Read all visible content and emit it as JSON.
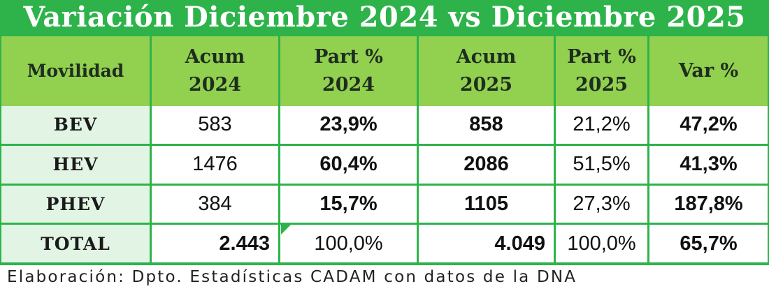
{
  "title": "Variación Diciembre 2024 vs Diciembre 2025",
  "header": {
    "col1": "Movilidad",
    "col2_line1": "Acum",
    "col2_line2": "2024",
    "col3_line1": "Part %",
    "col3_line2": "2024",
    "col4_line1": "Acum",
    "col4_line2": "2025",
    "col5_line1": "Part %",
    "col5_line2": "2025",
    "col6": "Var %"
  },
  "rows": [
    {
      "name": "BEV",
      "acum2024": "583",
      "part2024": "23,9%",
      "acum2025": "858",
      "part2025": "21,2%",
      "var": "47,2%"
    },
    {
      "name": "HEV",
      "acum2024": "1476",
      "part2024": "60,4%",
      "acum2025": "2086",
      "part2025": "51,5%",
      "var": "41,3%"
    },
    {
      "name": "PHEV",
      "acum2024": "384",
      "part2024": "15,7%",
      "acum2025": "1105",
      "part2025": "27,3%",
      "var": "187,8%"
    },
    {
      "name": "TOTAL",
      "acum2024": "2.443",
      "part2024": "100,0%",
      "acum2025": "4.049",
      "part2025": "100,0%",
      "var": "65,7%"
    }
  ],
  "footer": "Elaboración: Dpto. Estadísticas CADAM con datos de la DNA",
  "colors": {
    "accent_green": "#2db34a",
    "header_green": "#92d050",
    "rowhead_bg": "#e2f4e4"
  }
}
